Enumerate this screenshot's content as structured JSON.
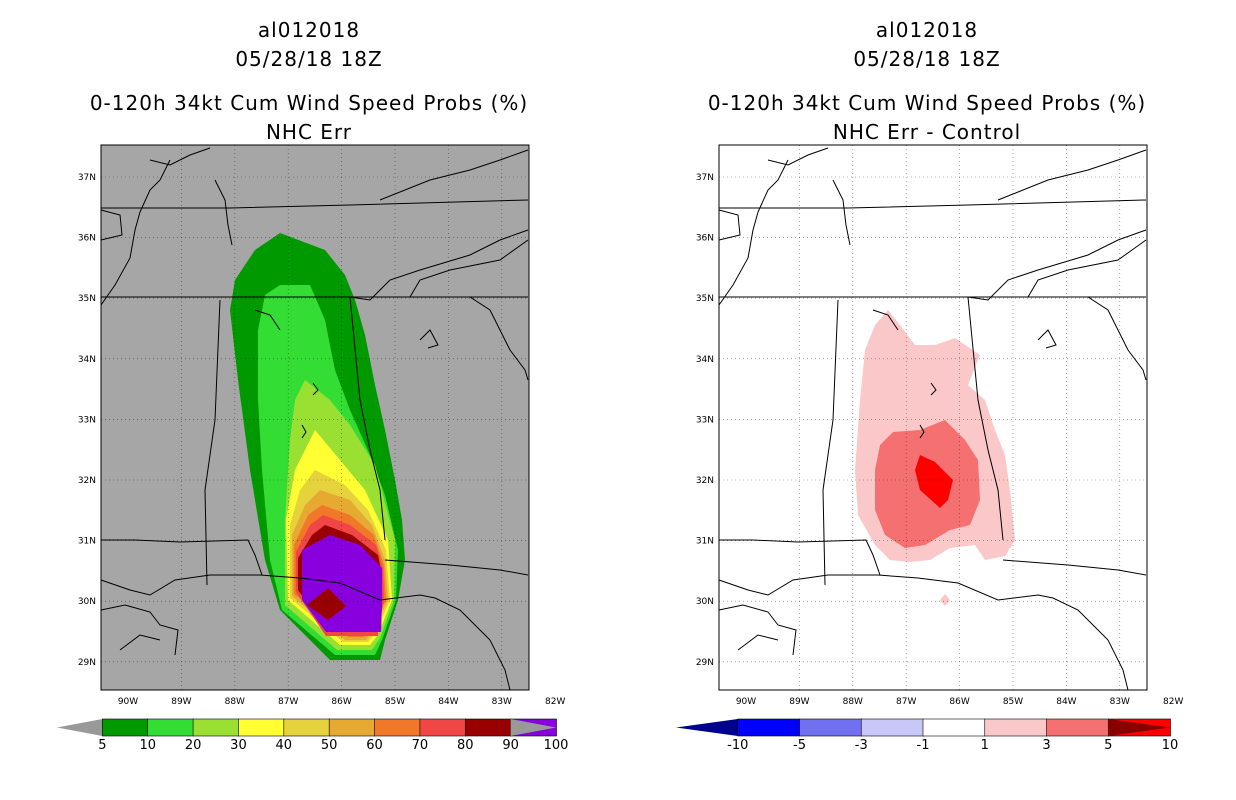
{
  "panels": [
    {
      "storm_id": "al012018",
      "datetime": "05/28/18 18Z",
      "product": "0-120h 34kt Cum Wind Speed Probs (%)",
      "subtitle": "NHC Err",
      "background": "#a6a6a6",
      "colorbar": {
        "labels": [
          "5",
          "10",
          "20",
          "30",
          "40",
          "50",
          "60",
          "70",
          "80",
          "90",
          "100"
        ],
        "colors": [
          "#009900",
          "#33dd33",
          "#99e033",
          "#ffff33",
          "#e6d23c",
          "#e6aa33",
          "#f07828",
          "#f04646",
          "#990000",
          "#8800dd"
        ],
        "end_left": "#999999",
        "end_right": "#999999"
      }
    },
    {
      "storm_id": "al012018",
      "datetime": "05/28/18 18Z",
      "product": "0-120h 34kt Cum Wind Speed Probs (%)",
      "subtitle": "NHC Err - Control",
      "background": "#ffffff",
      "colorbar": {
        "labels": [
          "-10",
          "-5",
          "-3",
          "-1",
          "1",
          "3",
          "5",
          "10"
        ],
        "colors": [
          "#0000ff",
          "#7070f0",
          "#c8c8f8",
          "#ffffff",
          "#fac8c8",
          "#f57070",
          "#ff0000"
        ],
        "end_left": "#00008c",
        "end_right": "#880000"
      }
    }
  ],
  "lon_labels": [
    "90W",
    "89W",
    "88W",
    "87W",
    "86W",
    "85W",
    "84W",
    "83W",
    "82W"
  ],
  "lat_labels": [
    "37N",
    "36N",
    "35N",
    "34N",
    "33N",
    "32N",
    "31N",
    "30N",
    "29N"
  ],
  "colors": {
    "map_lines": "#000000",
    "grid": "#000000"
  }
}
